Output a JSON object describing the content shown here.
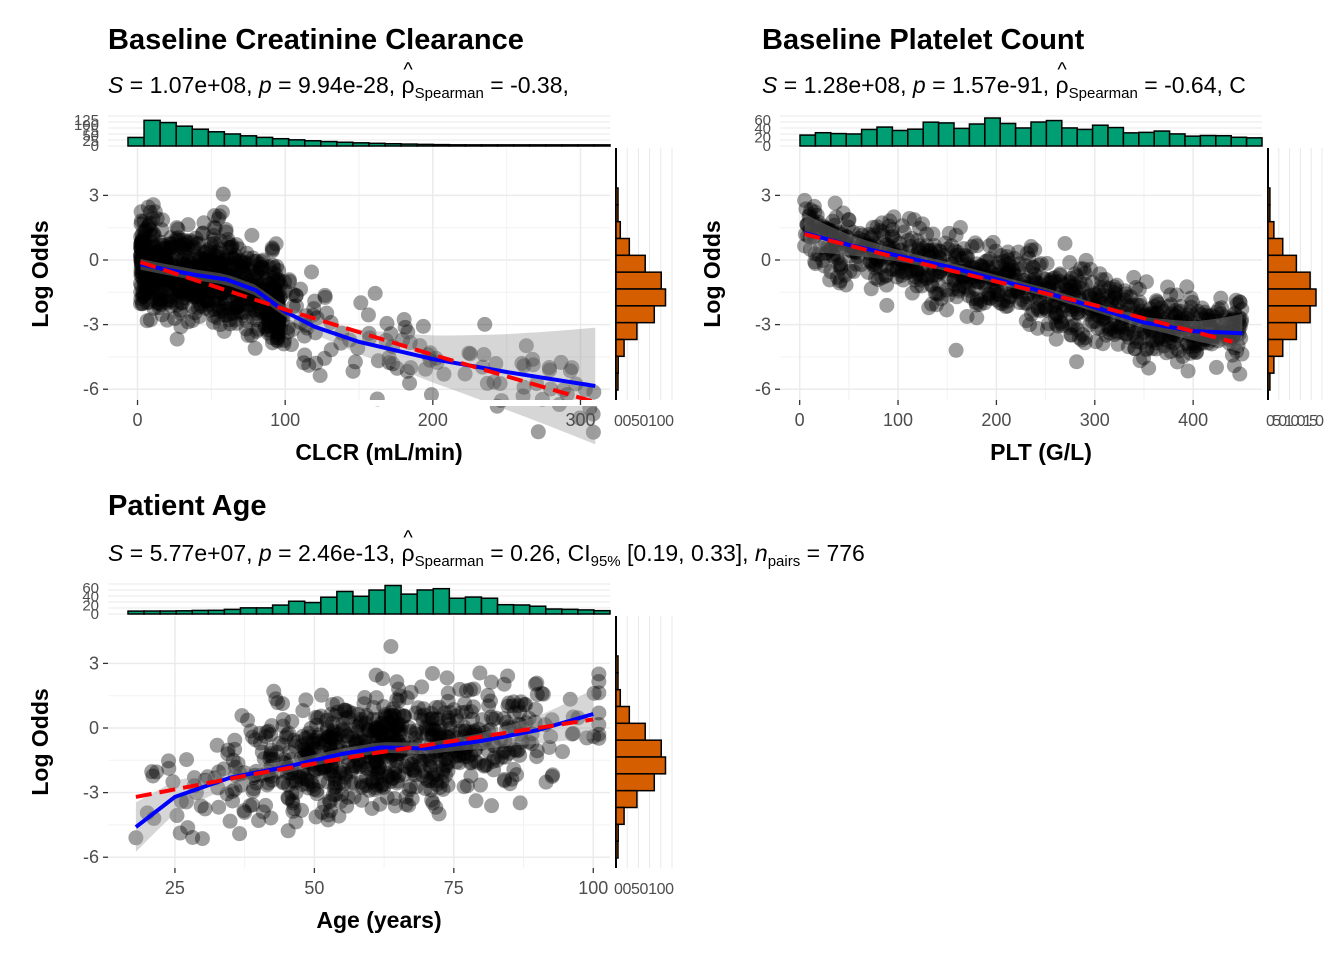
{
  "chart_data": [
    {
      "type": "scatter",
      "title": "Baseline Creatinine Clearance",
      "subtitle": {
        "S": "1.07e+08",
        "p": "9.94e-28",
        "rho": "-0.38",
        "tail": ","
      },
      "xlabel": "CLCR (mL/min)",
      "ylabel": "Log Odds",
      "xlim": [
        -20,
        320
      ],
      "ylim": [
        -6.5,
        5.2
      ],
      "xticks": [
        0,
        100,
        200,
        300
      ],
      "yticks": [
        -6,
        -3,
        0,
        3
      ],
      "xhist_ticks": [
        "0",
        "25",
        "50",
        "75",
        "100",
        "125"
      ],
      "yhist_ticks": "0050100",
      "smooth_line": [
        [
          2,
          -0.2
        ],
        [
          20,
          -0.45
        ],
        [
          40,
          -0.7
        ],
        [
          60,
          -0.9
        ],
        [
          80,
          -1.4
        ],
        [
          100,
          -2.4
        ],
        [
          120,
          -3.1
        ],
        [
          150,
          -3.8
        ],
        [
          200,
          -4.6
        ],
        [
          250,
          -5.2
        ],
        [
          310,
          -5.85
        ]
      ],
      "linear_fit": [
        [
          2,
          -0.1
        ],
        [
          100,
          -2.3
        ],
        [
          200,
          -4.4
        ],
        [
          260,
          -5.6
        ],
        [
          310,
          -6.6
        ]
      ],
      "seed": 11
    },
    {
      "type": "scatter",
      "title": "Baseline Platelet Count",
      "subtitle": {
        "S": "1.28e+08",
        "p": "1.57e-91",
        "rho": "-0.64",
        "tail": "C"
      },
      "xlabel": "PLT (G/L)",
      "ylabel": "Log Odds",
      "xlim": [
        -20,
        470
      ],
      "ylim": [
        -6.5,
        5.2
      ],
      "xticks": [
        0,
        100,
        200,
        300,
        400
      ],
      "yticks": [
        -6,
        -3,
        0,
        3
      ],
      "xhist_ticks": [
        "0",
        "20",
        "40",
        "60"
      ],
      "yhist_ticks": "050100150",
      "smooth_line": [
        [
          5,
          1.25
        ],
        [
          50,
          0.7
        ],
        [
          100,
          0.2
        ],
        [
          150,
          -0.3
        ],
        [
          200,
          -0.9
        ],
        [
          250,
          -1.5
        ],
        [
          300,
          -2.2
        ],
        [
          350,
          -2.9
        ],
        [
          400,
          -3.3
        ],
        [
          450,
          -3.4
        ]
      ],
      "linear_fit": [
        [
          5,
          1.2
        ],
        [
          100,
          0.1
        ],
        [
          200,
          -1.0
        ],
        [
          300,
          -2.1
        ],
        [
          440,
          -3.8
        ]
      ],
      "seed": 23
    },
    {
      "type": "scatter",
      "title": "Patient Age",
      "subtitle": {
        "S": "5.77e+07",
        "p": "2.46e-13",
        "rho": "0.26",
        "ci": "[0.19, 0.33]",
        "n": "776"
      },
      "xlabel": "Age (years)",
      "ylabel": "Log Odds",
      "xlim": [
        13,
        103
      ],
      "ylim": [
        -6.5,
        5.2
      ],
      "xticks": [
        25,
        50,
        75,
        100
      ],
      "yticks": [
        -6,
        -3,
        0,
        3
      ],
      "xhist_ticks": [
        "0",
        "20",
        "40",
        "60"
      ],
      "yhist_ticks": "0050100",
      "smooth_line": [
        [
          18,
          -4.6
        ],
        [
          25,
          -3.2
        ],
        [
          35,
          -2.3
        ],
        [
          45,
          -1.8
        ],
        [
          55,
          -1.2
        ],
        [
          62,
          -0.9
        ],
        [
          70,
          -0.95
        ],
        [
          80,
          -0.6
        ],
        [
          90,
          -0.1
        ],
        [
          100,
          0.65
        ]
      ],
      "linear_fit": [
        [
          18,
          -3.2
        ],
        [
          40,
          -2.1
        ],
        [
          60,
          -1.2
        ],
        [
          80,
          -0.4
        ],
        [
          100,
          0.4
        ]
      ],
      "seed": 37
    }
  ]
}
